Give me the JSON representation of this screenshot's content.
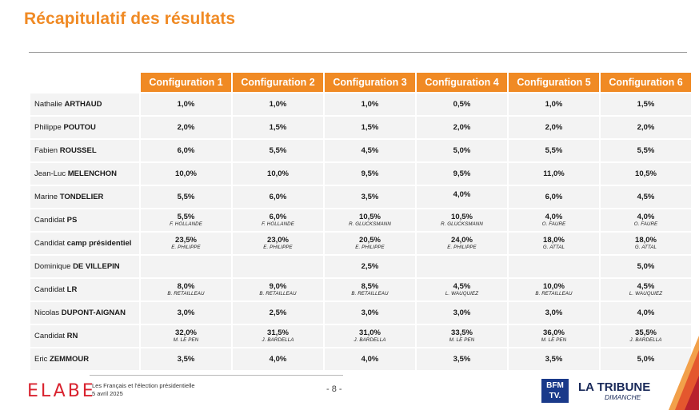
{
  "title": "Récapitulatif des résultats",
  "colors": {
    "accent": "#f08a24",
    "cell_bg": "#f3f3f3",
    "brand_red": "#d9232f"
  },
  "table": {
    "headers": [
      "Configuration 1",
      "Configuration 2",
      "Configuration 3",
      "Configuration 4",
      "Configuration 5",
      "Configuration 6"
    ],
    "rows": [
      {
        "first": "Nathalie",
        "last": "ARTHAUD",
        "cells": [
          {
            "v": "1,0%",
            "n": ""
          },
          {
            "v": "1,0%",
            "n": ""
          },
          {
            "v": "1,0%",
            "n": ""
          },
          {
            "v": "0,5%",
            "n": ""
          },
          {
            "v": "1,0%",
            "n": ""
          },
          {
            "v": "1,5%",
            "n": ""
          }
        ]
      },
      {
        "first": "Philippe",
        "last": "POUTOU",
        "cells": [
          {
            "v": "2,0%",
            "n": ""
          },
          {
            "v": "1,5%",
            "n": ""
          },
          {
            "v": "1,5%",
            "n": ""
          },
          {
            "v": "2,0%",
            "n": ""
          },
          {
            "v": "2,0%",
            "n": ""
          },
          {
            "v": "2,0%",
            "n": ""
          }
        ]
      },
      {
        "first": "Fabien",
        "last": "ROUSSEL",
        "cells": [
          {
            "v": "6,0%",
            "n": ""
          },
          {
            "v": "5,5%",
            "n": ""
          },
          {
            "v": "4,5%",
            "n": ""
          },
          {
            "v": "5,0%",
            "n": ""
          },
          {
            "v": "5,5%",
            "n": ""
          },
          {
            "v": "5,5%",
            "n": ""
          }
        ]
      },
      {
        "first": "Jean-Luc",
        "last": "MELENCHON",
        "cells": [
          {
            "v": "10,0%",
            "n": ""
          },
          {
            "v": "10,0%",
            "n": ""
          },
          {
            "v": "9,5%",
            "n": ""
          },
          {
            "v": "9,5%",
            "n": ""
          },
          {
            "v": "11,0%",
            "n": ""
          },
          {
            "v": "10,5%",
            "n": ""
          }
        ]
      },
      {
        "first": "Marine",
        "last": "TONDELIER",
        "cells": [
          {
            "v": "5,5%",
            "n": ""
          },
          {
            "v": "6,0%",
            "n": ""
          },
          {
            "v": "3,5%",
            "n": ""
          },
          {
            "v": "4,0%",
            "n": ""
          },
          {
            "v": "6,0%",
            "n": ""
          },
          {
            "v": "4,5%",
            "n": ""
          }
        ]
      },
      {
        "first": "Candidat",
        "last": "PS",
        "cells": [
          {
            "v": "5,5%",
            "n": "F. HOLLANDE"
          },
          {
            "v": "6,0%",
            "n": "F. HOLLANDE"
          },
          {
            "v": "10,5%",
            "n": "R. GLUCKSMANN"
          },
          {
            "v": "10,5%",
            "n": "R. GLUCKSMANN"
          },
          {
            "v": "4,0%",
            "n": "O. FAURE"
          },
          {
            "v": "4,0%",
            "n": "O. FAURE"
          }
        ]
      },
      {
        "first": "Candidat",
        "last": "camp présidentiel",
        "cells": [
          {
            "v": "23,5%",
            "n": "E. PHILIPPE"
          },
          {
            "v": "23,0%",
            "n": "E. PHILIPPE"
          },
          {
            "v": "20,5%",
            "n": "E. PHILIPPE"
          },
          {
            "v": "24,0%",
            "n": "E. PHILIPPE"
          },
          {
            "v": "18,0%",
            "n": "G. ATTAL"
          },
          {
            "v": "18,0%",
            "n": "G. ATTAL"
          }
        ]
      },
      {
        "first": "Dominique",
        "last": "DE VILLEPIN",
        "cells": [
          {
            "v": "",
            "n": ""
          },
          {
            "v": "",
            "n": ""
          },
          {
            "v": "2,5%",
            "n": ""
          },
          {
            "v": "",
            "n": ""
          },
          {
            "v": "",
            "n": ""
          },
          {
            "v": "5,0%",
            "n": ""
          }
        ]
      },
      {
        "first": "Candidat",
        "last": "LR",
        "cells": [
          {
            "v": "8,0%",
            "n": "B. RETAILLEAU"
          },
          {
            "v": "9,0%",
            "n": "B. RETAILLEAU"
          },
          {
            "v": "8,5%",
            "n": "B. RETAILLEAU"
          },
          {
            "v": "4,5%",
            "n": "L. WAUQUIEZ"
          },
          {
            "v": "10,0%",
            "n": "B. RETAILLEAU"
          },
          {
            "v": "4,5%",
            "n": "L. WAUQUIEZ"
          }
        ]
      },
      {
        "first": "Nicolas",
        "last": "DUPONT-AIGNAN",
        "cells": [
          {
            "v": "3,0%",
            "n": ""
          },
          {
            "v": "2,5%",
            "n": ""
          },
          {
            "v": "3,0%",
            "n": ""
          },
          {
            "v": "3,0%",
            "n": ""
          },
          {
            "v": "3,0%",
            "n": ""
          },
          {
            "v": "4,0%",
            "n": ""
          }
        ]
      },
      {
        "first": "Candidat",
        "last": "RN",
        "cells": [
          {
            "v": "32,0%",
            "n": "M. LE PEN"
          },
          {
            "v": "31,5%",
            "n": "J. BARDELLA"
          },
          {
            "v": "31,0%",
            "n": "J. BARDELLA"
          },
          {
            "v": "33,5%",
            "n": "M. LE PEN"
          },
          {
            "v": "36,0%",
            "n": "M. LE PEN"
          },
          {
            "v": "35,5%",
            "n": "J. BARDELLA"
          }
        ]
      },
      {
        "first": "Eric",
        "last": "ZEMMOUR",
        "cells": [
          {
            "v": "3,5%",
            "n": ""
          },
          {
            "v": "4,0%",
            "n": ""
          },
          {
            "v": "4,0%",
            "n": ""
          },
          {
            "v": "3,5%",
            "n": ""
          },
          {
            "v": "3,5%",
            "n": ""
          },
          {
            "v": "5,0%",
            "n": ""
          }
        ]
      }
    ]
  },
  "footer": {
    "logo": "ELABE",
    "line1": "Les Français et l'élection présidentielle",
    "line2": "5 avril 2025",
    "page": "- 8 -",
    "bfm_top": "BFM",
    "bfm_bottom": "TV.",
    "tribune": "LA TRIBUNE",
    "dimanche": "DIMANCHE"
  }
}
